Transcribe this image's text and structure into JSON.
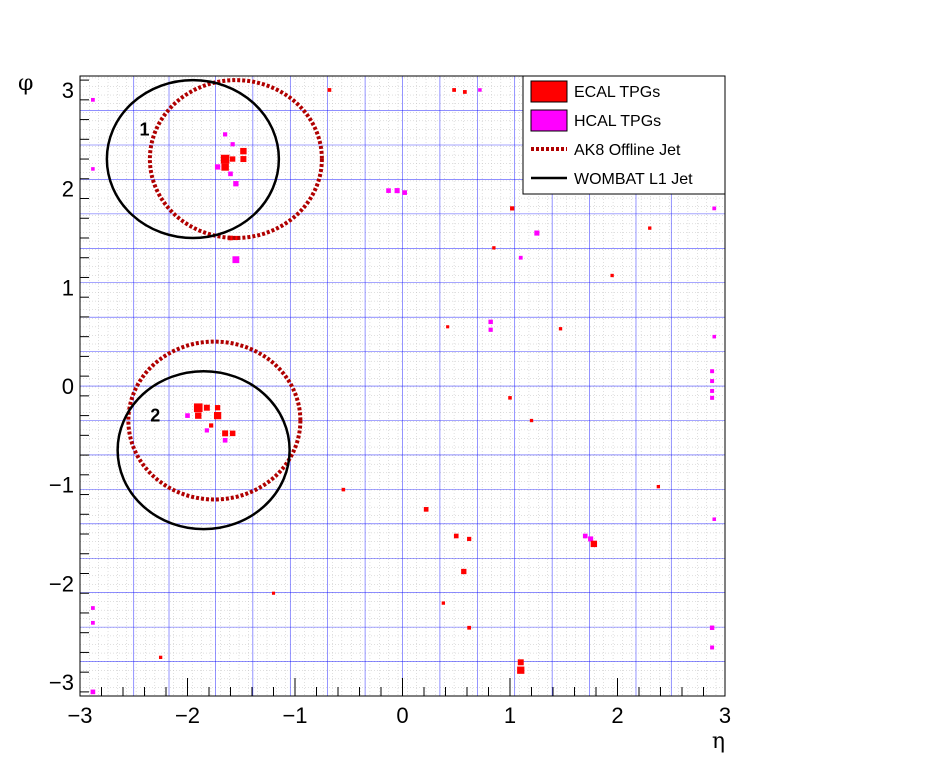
{
  "chart_data": {
    "type": "scatter",
    "xlabel": "η",
    "ylabel": "φ",
    "xlim": [
      -3,
      3
    ],
    "ylim": [
      -3.14159,
      3.14159
    ],
    "x_ticks": [
      -3,
      -2,
      -1,
      0,
      1,
      2,
      3
    ],
    "y_ticks": [
      -3,
      -2,
      -1,
      0,
      1,
      2,
      3
    ],
    "x_tick_labels": [
      "−3",
      "−2",
      "−1",
      "0",
      "1",
      "2",
      "3"
    ],
    "y_tick_labels": [
      "−3",
      "−2",
      "−1",
      "0",
      "1",
      "2",
      "3"
    ],
    "grid": true,
    "legend_placement": "top-right",
    "colors": {
      "ecal": "#ff0000",
      "hcal": "#ff00ff",
      "ak8": "#b00000",
      "wombat": "#000000",
      "grid_major": "#0000ff",
      "grid_minor": "#bfbfbf"
    },
    "legend": [
      {
        "label": "ECAL TPGs",
        "kind": "ecal"
      },
      {
        "label": "HCAL TPGs",
        "kind": "hcal"
      },
      {
        "label": "AK8 Offline Jet",
        "kind": "ak8"
      },
      {
        "label": "WOMBAT L1 Jet",
        "kind": "wombat"
      }
    ],
    "jets_offline": [
      {
        "eta": -1.55,
        "phi": 2.3,
        "r": 0.8
      },
      {
        "eta": -1.75,
        "phi": -0.35,
        "r": 0.8
      }
    ],
    "jets_l1": [
      {
        "eta": -1.95,
        "phi": 2.3,
        "r": 0.8
      },
      {
        "eta": -1.85,
        "phi": -0.65,
        "r": 0.8
      }
    ],
    "jet_labels": [
      {
        "text": "1",
        "eta": -2.4,
        "phi": 2.6
      },
      {
        "text": "2",
        "eta": -2.3,
        "phi": -0.3
      }
    ],
    "ecal_tpgs": [
      {
        "eta": -1.65,
        "phi": 2.3,
        "e": 3
      },
      {
        "eta": -1.65,
        "phi": 2.22,
        "e": 2.5
      },
      {
        "eta": -1.48,
        "phi": 2.38,
        "e": 2
      },
      {
        "eta": -1.48,
        "phi": 2.3,
        "e": 1.8
      },
      {
        "eta": -1.58,
        "phi": 2.3,
        "e": 1.5
      },
      {
        "eta": -1.6,
        "phi": 1.5,
        "e": 1.2
      },
      {
        "eta": -1.55,
        "phi": 1.5,
        "e": 1
      },
      {
        "eta": -1.9,
        "phi": -0.22,
        "e": 3
      },
      {
        "eta": -1.9,
        "phi": -0.3,
        "e": 2
      },
      {
        "eta": -1.82,
        "phi": -0.22,
        "e": 1.8
      },
      {
        "eta": -1.72,
        "phi": -0.3,
        "e": 2.4
      },
      {
        "eta": -1.72,
        "phi": -0.22,
        "e": 1.5
      },
      {
        "eta": -1.65,
        "phi": -0.48,
        "e": 1.8
      },
      {
        "eta": -1.58,
        "phi": -0.48,
        "e": 1.6
      },
      {
        "eta": -1.78,
        "phi": -0.4,
        "e": 1
      },
      {
        "eta": 1.78,
        "phi": -1.6,
        "e": 2
      },
      {
        "eta": 1.1,
        "phi": -2.8,
        "e": 1.8
      },
      {
        "eta": 1.1,
        "phi": -2.88,
        "e": 2.4
      },
      {
        "eta": 0.57,
        "phi": -1.88,
        "e": 1.5
      },
      {
        "eta": 0.5,
        "phi": -1.52,
        "e": 1.2
      },
      {
        "eta": 0.22,
        "phi": -1.25,
        "e": 1.2
      },
      {
        "eta": 0.62,
        "phi": -1.55,
        "e": 1
      },
      {
        "eta": 1.02,
        "phi": 1.8,
        "e": 1
      },
      {
        "eta": 0.48,
        "phi": 3.0,
        "e": 0.8
      },
      {
        "eta": 0.58,
        "phi": 2.98,
        "e": 0.8
      },
      {
        "eta": -0.68,
        "phi": 3.0,
        "e": 0.8
      },
      {
        "eta": 0.62,
        "phi": -2.45,
        "e": 0.8
      },
      {
        "eta": -0.55,
        "phi": -1.05,
        "e": 0.7
      },
      {
        "eta": 1.0,
        "phi": -0.12,
        "e": 0.7
      },
      {
        "eta": 1.2,
        "phi": -0.35,
        "e": 0.6
      },
      {
        "eta": 2.38,
        "phi": -1.02,
        "e": 0.6
      },
      {
        "eta": 1.95,
        "phi": 1.12,
        "e": 0.6
      },
      {
        "eta": 1.47,
        "phi": 0.58,
        "e": 0.6
      },
      {
        "eta": -1.2,
        "phi": -2.1,
        "e": 0.5
      },
      {
        "eta": -2.25,
        "phi": -2.75,
        "e": 0.6
      },
      {
        "eta": 2.3,
        "phi": 1.6,
        "e": 0.6
      },
      {
        "eta": 0.38,
        "phi": -2.2,
        "e": 0.6
      },
      {
        "eta": 0.42,
        "phi": 0.6,
        "e": 0.5
      },
      {
        "eta": 0.85,
        "phi": 1.4,
        "e": 0.6
      }
    ],
    "hcal_tpgs": [
      {
        "eta": -1.65,
        "phi": 2.3,
        "e": 2.5
      },
      {
        "eta": -1.72,
        "phi": 2.22,
        "e": 1.5
      },
      {
        "eta": -1.6,
        "phi": 2.15,
        "e": 1.2
      },
      {
        "eta": -1.55,
        "phi": 2.05,
        "e": 1.5
      },
      {
        "eta": -1.55,
        "phi": 1.28,
        "e": 2.2
      },
      {
        "eta": -1.65,
        "phi": 2.55,
        "e": 1
      },
      {
        "eta": -1.58,
        "phi": 2.45,
        "e": 1
      },
      {
        "eta": -1.9,
        "phi": -0.22,
        "e": 2
      },
      {
        "eta": -2.0,
        "phi": -0.3,
        "e": 1.2
      },
      {
        "eta": -1.65,
        "phi": -0.55,
        "e": 1.2
      },
      {
        "eta": -1.82,
        "phi": -0.45,
        "e": 1
      },
      {
        "eta": 1.7,
        "phi": -1.52,
        "e": 1.2
      },
      {
        "eta": 1.75,
        "phi": -1.55,
        "e": 1.4
      },
      {
        "eta": -0.05,
        "phi": 1.98,
        "e": 1.4
      },
      {
        "eta": -0.13,
        "phi": 1.98,
        "e": 1.2
      },
      {
        "eta": 0.02,
        "phi": 1.96,
        "e": 1.2
      },
      {
        "eta": 1.25,
        "phi": 1.55,
        "e": 1.4
      },
      {
        "eta": 0.82,
        "phi": 0.65,
        "e": 1.1
      },
      {
        "eta": 0.82,
        "phi": 0.57,
        "e": 1
      },
      {
        "eta": 2.88,
        "phi": 0.15,
        "e": 0.9
      },
      {
        "eta": 2.88,
        "phi": 0.05,
        "e": 0.9
      },
      {
        "eta": 2.88,
        "phi": -0.05,
        "e": 0.9
      },
      {
        "eta": 2.88,
        "phi": -0.12,
        "e": 0.9
      },
      {
        "eta": 2.88,
        "phi": -2.45,
        "e": 1.1
      },
      {
        "eta": 2.88,
        "phi": -2.65,
        "e": 0.9
      },
      {
        "eta": -2.88,
        "phi": -3.1,
        "e": 1.2
      },
      {
        "eta": -2.88,
        "phi": -2.25,
        "e": 0.8
      },
      {
        "eta": -2.88,
        "phi": -2.4,
        "e": 0.8
      },
      {
        "eta": -2.88,
        "phi": 2.9,
        "e": 0.8
      },
      {
        "eta": -2.88,
        "phi": 2.2,
        "e": 0.7
      },
      {
        "eta": 2.9,
        "phi": 1.8,
        "e": 0.8
      },
      {
        "eta": 2.9,
        "phi": 0.5,
        "e": 0.7
      },
      {
        "eta": 1.1,
        "phi": 1.3,
        "e": 0.8
      },
      {
        "eta": 0.72,
        "phi": 3.0,
        "e": 0.7
      },
      {
        "eta": 2.9,
        "phi": -1.35,
        "e": 0.7
      }
    ]
  }
}
